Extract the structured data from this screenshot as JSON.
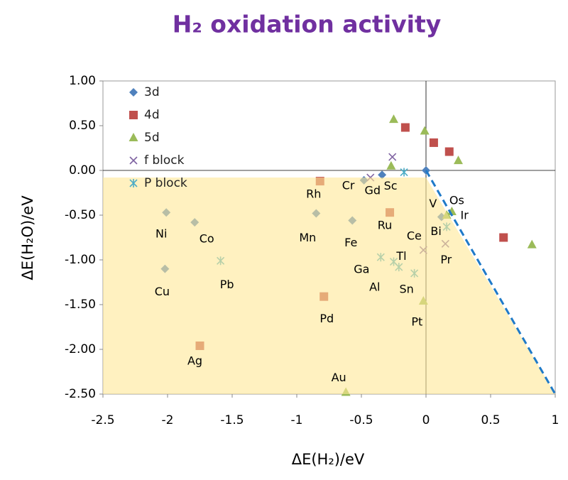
{
  "chart_data": {
    "type": "scatter",
    "title": "H₂ oxidation activity",
    "x_label": "ΔE(H₂)/eV",
    "y_label": "ΔE(H₂O)/eV",
    "xlim": [
      -2.5,
      1
    ],
    "ylim": [
      -2.5,
      1
    ],
    "xticks": [
      -2.5,
      -2,
      -1.5,
      -1,
      -0.5,
      0,
      0.5,
      1
    ],
    "yticks": [
      {
        "value": 1,
        "label": "1.00"
      },
      {
        "value": 0.5,
        "label": "0.50"
      },
      {
        "value": 0,
        "label": "0.00"
      },
      {
        "value": -0.5,
        "label": "-0.50"
      },
      {
        "value": -1,
        "label": "-1.00"
      },
      {
        "value": -1.5,
        "label": "-1.50"
      },
      {
        "value": -2,
        "label": "-2.00"
      },
      {
        "value": -2.5,
        "label": "-2.50"
      }
    ],
    "legend": "top-left",
    "series": [
      {
        "name": "3d",
        "color": "#4f81bd",
        "marker": "diamond",
        "x": [
          -0.34,
          -0.48,
          -0.85,
          -0.57,
          -1.79,
          -2.01,
          -2.02,
          0.12,
          0
        ],
        "y": [
          -0.05,
          -0.11,
          -0.48,
          -0.56,
          -0.58,
          -0.47,
          -1.1,
          -0.52,
          0
        ],
        "labels": [
          "Sc",
          "Cr",
          "Mn",
          "Fe",
          "Co",
          "Ni",
          "Cu",
          "V",
          null
        ]
      },
      {
        "name": "4d",
        "color": "#c0504d",
        "marker": "square",
        "x": [
          -0.82,
          -0.28,
          -0.79,
          -1.75,
          -0.16,
          0.06,
          0.18,
          0.6
        ],
        "y": [
          -0.12,
          -0.47,
          -1.41,
          -1.96,
          0.48,
          0.31,
          0.21,
          -0.75
        ],
        "labels": [
          "Rh",
          "Ru",
          "Pd",
          "Ag",
          null,
          null,
          null,
          null
        ]
      },
      {
        "name": "5d",
        "color": "#9bbb59",
        "marker": "triangle",
        "x": [
          -0.25,
          -0.01,
          -0.27,
          0.25,
          0.82,
          0.2,
          0.16,
          -0.02,
          -0.62
        ],
        "y": [
          0.57,
          0.44,
          0.05,
          0.11,
          -0.83,
          -0.46,
          -0.5,
          -1.46,
          -2.48
        ],
        "labels": [
          null,
          null,
          null,
          null,
          null,
          "Os",
          "Ir",
          "Pt",
          "Au"
        ]
      },
      {
        "name": "f block",
        "color": "#8064a2",
        "marker": "x",
        "x": [
          -0.43,
          -0.26,
          -0.02,
          0.15
        ],
        "y": [
          -0.08,
          0.15,
          -0.89,
          -0.82
        ],
        "labels": [
          "Gd",
          null,
          "Ce",
          "Pr"
        ]
      },
      {
        "name": "P block",
        "color": "#4bacc6",
        "marker": "star",
        "x": [
          -0.17,
          -1.59,
          -0.35,
          -0.25,
          -0.21,
          -0.09,
          0.16
        ],
        "y": [
          -0.02,
          -1.01,
          -0.97,
          -1.02,
          -1.08,
          -1.15,
          -0.63
        ],
        "labels": [
          null,
          "Pb",
          "Ga",
          "Tl",
          "Al",
          "Sn",
          "Bi"
        ]
      }
    ]
  }
}
